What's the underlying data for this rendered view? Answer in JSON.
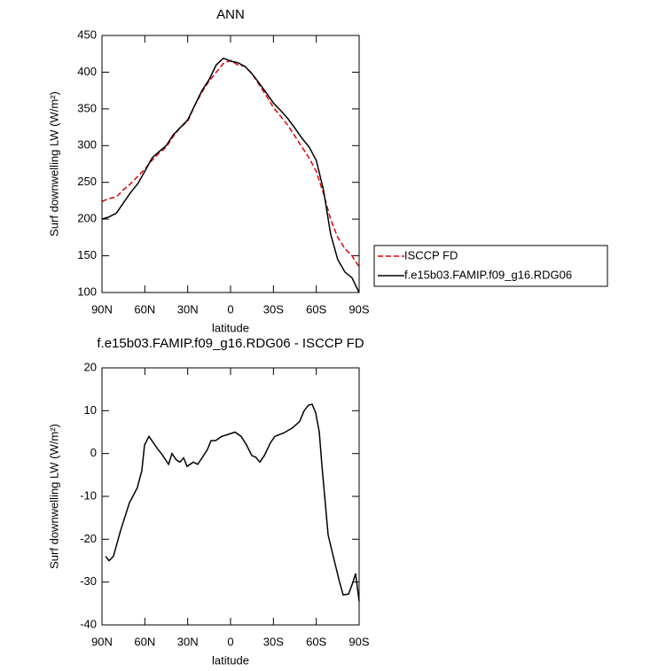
{
  "chart_data": [
    {
      "type": "line",
      "title": "ANN",
      "xlabel": "latitude",
      "ylabel": "Surf downwelling LW (W/m²)",
      "x": [
        90,
        85,
        80,
        75,
        70,
        65,
        60,
        55,
        50,
        45,
        40,
        35,
        30,
        25,
        20,
        15,
        10,
        5,
        0,
        -5,
        -10,
        -15,
        -20,
        -25,
        -30,
        -35,
        -40,
        -45,
        -50,
        -55,
        -60,
        -65,
        -70,
        -75,
        -80,
        -85,
        -90
      ],
      "series": [
        {
          "name": "ISCCP FD",
          "color": "#e00000",
          "dash": true,
          "values": [
            224,
            228,
            230,
            240,
            248,
            258,
            268,
            280,
            290,
            298,
            313,
            325,
            333,
            355,
            373,
            388,
            400,
            412,
            416,
            410,
            408,
            398,
            383,
            368,
            352,
            340,
            328,
            313,
            298,
            283,
            265,
            235,
            200,
            175,
            160,
            150,
            135
          ]
        },
        {
          "name": "f.e15b03.FAMIP.f09_g16.RDG06",
          "color": "#000000",
          "dash": false,
          "values": [
            200,
            203,
            208,
            222,
            236,
            248,
            265,
            283,
            292,
            300,
            315,
            325,
            335,
            355,
            375,
            390,
            410,
            419,
            415,
            413,
            408,
            398,
            385,
            372,
            358,
            348,
            337,
            324,
            310,
            298,
            280,
            240,
            180,
            145,
            128,
            120,
            100
          ]
        }
      ],
      "xlim": [
        90,
        -90
      ],
      "xticks": [
        {
          "value": 90,
          "label": "90N"
        },
        {
          "value": 60,
          "label": "60N"
        },
        {
          "value": 30,
          "label": "30N"
        },
        0,
        {
          "value": -30,
          "label": "30S"
        },
        {
          "value": -60,
          "label": "60S"
        },
        {
          "value": -90,
          "label": "90S"
        }
      ],
      "ylim": [
        100,
        450
      ],
      "yticks": [
        100,
        150,
        200,
        250,
        300,
        350,
        400,
        450
      ],
      "legend": "right"
    },
    {
      "type": "line",
      "title": "f.e15b03.FAMIP.f09_g16.RDG06 - ISCCP FD",
      "xlabel": "latitude",
      "ylabel": "Surf downwelling LW (W/m²)",
      "x": [
        87.5,
        85,
        82,
        77,
        70.8,
        65.3,
        62.1,
        60.2,
        57.1,
        54,
        50.9,
        48.4,
        43.4,
        41,
        37.9,
        35.4,
        32.9,
        30.4,
        26.1,
        23,
        19.9,
        16.1,
        13.7,
        10.5,
        6.2,
        3.1,
        -3.1,
        -7.4,
        -11.2,
        -14.9,
        -17.4,
        -20.5,
        -23.6,
        -27.9,
        -31,
        -37.2,
        -43.4,
        -48.4,
        -51.5,
        -54.6,
        -57.1,
        -59.6,
        -62.1,
        -64,
        -68.3,
        -72.6,
        -76.3,
        -78.8,
        -82.6,
        -85.7,
        -87.5,
        -90
      ],
      "series": [
        {
          "color": "#000000",
          "dash": false,
          "values": [
            -24,
            -25,
            -24,
            -18,
            -11.5,
            -8,
            -4,
            2,
            4,
            2.5,
            1,
            0,
            -2.5,
            0,
            -1.5,
            -2,
            -1,
            -3,
            -2,
            -2.5,
            -1,
            1,
            3,
            3,
            4,
            4.3,
            5,
            4,
            2,
            -0.5,
            -0.8,
            -2,
            -0.5,
            2.5,
            4,
            4.8,
            6,
            7.5,
            10,
            11.3,
            11.5,
            9.5,
            5,
            -3,
            -19,
            -25,
            -30,
            -33,
            -32.8,
            -30,
            -28,
            -34.5
          ]
        }
      ],
      "xlim": [
        90,
        -90
      ],
      "xticks": [
        {
          "value": 90,
          "label": "90N"
        },
        {
          "value": 60,
          "label": "60N"
        },
        {
          "value": 30,
          "label": "30N"
        },
        0,
        {
          "value": -30,
          "label": "30S"
        },
        {
          "value": -60,
          "label": "60S"
        },
        {
          "value": -90,
          "label": "90S"
        }
      ],
      "ylim": [
        -40,
        20
      ],
      "yticks": [
        -40,
        -30,
        -20,
        -10,
        0,
        10,
        20
      ]
    }
  ]
}
